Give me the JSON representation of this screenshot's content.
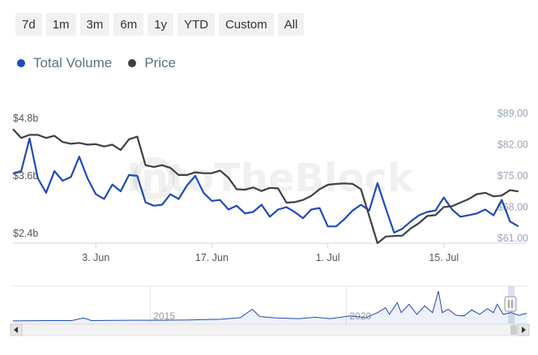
{
  "range_buttons": [
    {
      "label": "7d"
    },
    {
      "label": "1m"
    },
    {
      "label": "3m"
    },
    {
      "label": "6m"
    },
    {
      "label": "1y"
    },
    {
      "label": "YTD"
    },
    {
      "label": "Custom"
    },
    {
      "label": "All"
    }
  ],
  "legend": {
    "volume": {
      "label": "Total Volume",
      "color": "#1f4ab8"
    },
    "price": {
      "label": "Price",
      "color": "#3b4146"
    }
  },
  "watermark": "IntoTheBlock",
  "chart_data": {
    "type": "line",
    "title": "",
    "xlabel": "",
    "ylabel": "",
    "grid": false,
    "legend_position": "top-left",
    "x_ticks": [
      "3. Jun",
      "17. Jun",
      "1. Jul",
      "15. Jul"
    ],
    "x_tick_days": [
      10,
      24,
      38,
      52
    ],
    "y_left": {
      "ticks": [
        "$4.8b",
        "$3.6b",
        "$2.4b"
      ],
      "tick_values": [
        4.8,
        3.6,
        2.4
      ],
      "range": [
        2.2,
        4.9
      ],
      "unit": "billion USD"
    },
    "y_right": {
      "ticks": [
        "$89.00",
        "$82.00",
        "$75.00",
        "$68.00",
        "$61.00"
      ],
      "tick_values": [
        89,
        82,
        75,
        68,
        61
      ],
      "range": [
        59.9,
        89
      ],
      "unit": "USD"
    },
    "x_range_days": [
      0,
      62
    ],
    "series": [
      {
        "name": "Total Volume",
        "axis": "left",
        "color": "#1f4ab8",
        "points": [
          [
            0,
            3.65
          ],
          [
            1,
            3.7
          ],
          [
            2,
            4.38
          ],
          [
            3,
            3.55
          ],
          [
            4,
            3.25
          ],
          [
            5,
            3.7
          ],
          [
            6,
            3.5
          ],
          [
            7,
            3.58
          ],
          [
            8,
            4.0
          ],
          [
            9,
            3.55
          ],
          [
            10,
            3.22
          ],
          [
            11,
            3.12
          ],
          [
            12,
            3.42
          ],
          [
            13,
            3.28
          ],
          [
            14,
            3.62
          ],
          [
            15,
            3.6
          ],
          [
            16,
            3.05
          ],
          [
            17,
            2.98
          ],
          [
            18,
            3.0
          ],
          [
            19,
            3.22
          ],
          [
            20,
            3.12
          ],
          [
            21,
            3.4
          ],
          [
            22,
            3.6
          ],
          [
            23,
            3.25
          ],
          [
            24,
            3.08
          ],
          [
            25,
            3.1
          ],
          [
            26,
            2.9
          ],
          [
            27,
            2.98
          ],
          [
            28,
            2.82
          ],
          [
            29,
            2.85
          ],
          [
            30,
            3.0
          ],
          [
            31,
            2.75
          ],
          [
            32,
            2.9
          ],
          [
            33,
            2.95
          ],
          [
            34,
            2.85
          ],
          [
            35,
            2.72
          ],
          [
            36,
            2.9
          ],
          [
            37,
            2.93
          ],
          [
            38,
            2.55
          ],
          [
            39,
            2.55
          ],
          [
            40,
            2.7
          ],
          [
            41,
            2.88
          ],
          [
            42,
            3.0
          ],
          [
            43,
            2.88
          ],
          [
            44,
            3.45
          ],
          [
            45,
            2.92
          ],
          [
            46,
            2.42
          ],
          [
            47,
            2.5
          ],
          [
            48,
            2.65
          ],
          [
            49,
            2.78
          ],
          [
            50,
            2.85
          ],
          [
            51,
            2.88
          ],
          [
            52,
            3.15
          ],
          [
            53,
            2.9
          ],
          [
            54,
            2.75
          ],
          [
            55,
            2.78
          ],
          [
            56,
            2.82
          ],
          [
            57,
            2.9
          ],
          [
            58,
            2.78
          ],
          [
            59,
            3.1
          ],
          [
            60,
            2.65
          ],
          [
            61,
            2.55
          ]
        ]
      },
      {
        "name": "Price",
        "axis": "right",
        "color": "#3b4146",
        "points": [
          [
            0,
            85.5
          ],
          [
            1,
            83.5
          ],
          [
            2,
            84.2
          ],
          [
            3,
            84.2
          ],
          [
            4,
            83.5
          ],
          [
            5,
            84.0
          ],
          [
            6,
            82.6
          ],
          [
            7,
            82.2
          ],
          [
            8,
            82.4
          ],
          [
            9,
            82.0
          ],
          [
            10,
            82.1
          ],
          [
            11,
            81.6
          ],
          [
            12,
            82.0
          ],
          [
            13,
            80.8
          ],
          [
            14,
            83.2
          ],
          [
            15,
            83.8
          ],
          [
            16,
            77.4
          ],
          [
            17,
            77.0
          ],
          [
            18,
            77.4
          ],
          [
            19,
            76.8
          ],
          [
            20,
            75.2
          ],
          [
            21,
            75.2
          ],
          [
            22,
            75.8
          ],
          [
            23,
            75.6
          ],
          [
            24,
            75.6
          ],
          [
            25,
            76.2
          ],
          [
            26,
            74.6
          ],
          [
            27,
            72.0
          ],
          [
            28,
            71.9
          ],
          [
            29,
            72.4
          ],
          [
            30,
            71.6
          ],
          [
            31,
            72.3
          ],
          [
            32,
            72.2
          ],
          [
            33,
            69.0
          ],
          [
            34,
            69.1
          ],
          [
            35,
            69.6
          ],
          [
            36,
            70.5
          ],
          [
            37,
            72.0
          ],
          [
            38,
            73.0
          ],
          [
            39,
            73.2
          ],
          [
            40,
            73.3
          ],
          [
            41,
            73.2
          ],
          [
            42,
            72.0
          ],
          [
            43,
            66.0
          ],
          [
            44,
            59.9
          ],
          [
            45,
            61.4
          ],
          [
            46,
            61.5
          ],
          [
            47,
            61.6
          ],
          [
            48,
            63.2
          ],
          [
            49,
            64.4
          ],
          [
            50,
            66.0
          ],
          [
            51,
            66.2
          ],
          [
            52,
            68.0
          ],
          [
            53,
            68.2
          ],
          [
            54,
            69.0
          ],
          [
            55,
            69.8
          ],
          [
            56,
            70.9
          ],
          [
            57,
            71.2
          ],
          [
            58,
            70.4
          ],
          [
            59,
            70.6
          ],
          [
            60,
            71.8
          ],
          [
            61,
            71.5
          ]
        ]
      }
    ],
    "navigator": {
      "x_labels": [
        "2015",
        "2020"
      ],
      "x_label_years": [
        2015,
        2020
      ],
      "year_range": [
        2011.5,
        2024.6
      ],
      "series": [
        [
          2011.5,
          0.05
        ],
        [
          2012.4,
          0.06
        ],
        [
          2013.0,
          0.06
        ],
        [
          2013.3,
          0.14
        ],
        [
          2013.5,
          0.06
        ],
        [
          2014.5,
          0.07
        ],
        [
          2015.3,
          0.07
        ],
        [
          2016.0,
          0.08
        ],
        [
          2016.8,
          0.1
        ],
        [
          2017.3,
          0.15
        ],
        [
          2017.6,
          0.4
        ],
        [
          2017.8,
          0.18
        ],
        [
          2018.2,
          0.14
        ],
        [
          2018.8,
          0.12
        ],
        [
          2019.2,
          0.16
        ],
        [
          2019.6,
          0.12
        ],
        [
          2020.1,
          0.2
        ],
        [
          2020.5,
          0.15
        ],
        [
          2020.8,
          0.3
        ],
        [
          2021.0,
          0.45
        ],
        [
          2021.1,
          0.25
        ],
        [
          2021.3,
          0.6
        ],
        [
          2021.4,
          0.3
        ],
        [
          2021.6,
          0.55
        ],
        [
          2021.8,
          0.25
        ],
        [
          2022.0,
          0.5
        ],
        [
          2022.2,
          0.3
        ],
        [
          2022.35,
          0.95
        ],
        [
          2022.45,
          0.3
        ],
        [
          2022.6,
          0.4
        ],
        [
          2022.8,
          0.22
        ],
        [
          2023.0,
          0.2
        ],
        [
          2023.2,
          0.38
        ],
        [
          2023.4,
          0.25
        ],
        [
          2023.6,
          0.42
        ],
        [
          2023.75,
          0.3
        ],
        [
          2023.85,
          0.55
        ],
        [
          2024.0,
          0.25
        ],
        [
          2024.2,
          0.3
        ],
        [
          2024.4,
          0.22
        ],
        [
          2024.6,
          0.28
        ]
      ]
    }
  }
}
